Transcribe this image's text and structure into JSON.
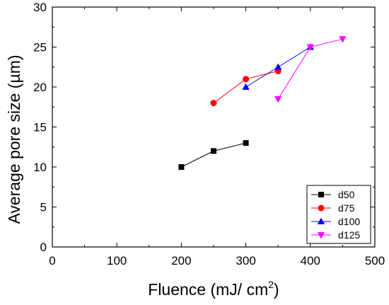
{
  "chart_data": {
    "type": "line",
    "title": "",
    "xlabel": "Fluence (mJ/ cm",
    "xlabel_sup": "2",
    "xlabel_close": ")",
    "ylabel": "Average pore size (µm)",
    "xlim": [
      0,
      500
    ],
    "ylim": [
      0,
      30
    ],
    "xticks": [
      "0",
      "100",
      "200",
      "300",
      "400",
      "500"
    ],
    "yticks": [
      "0",
      "5",
      "10",
      "15",
      "20",
      "25",
      "30"
    ],
    "grid": false,
    "legend_position": "bottom-right",
    "series": [
      {
        "name": "d50",
        "marker": "square",
        "color": "#000000",
        "x": [
          200,
          250,
          300
        ],
        "y": [
          10,
          12,
          13
        ]
      },
      {
        "name": "d75",
        "marker": "circle",
        "color": "#ff0000",
        "x": [
          250,
          300,
          350
        ],
        "y": [
          18,
          21,
          22
        ]
      },
      {
        "name": "d100",
        "marker": "triangle-up",
        "color": "#0000ff",
        "x": [
          300,
          350,
          400
        ],
        "y": [
          20,
          22.5,
          25
        ]
      },
      {
        "name": "d125",
        "marker": "triangle-down",
        "color": "#ff00ff",
        "x": [
          350,
          400,
          450
        ],
        "y": [
          18.5,
          25,
          26
        ]
      }
    ]
  }
}
